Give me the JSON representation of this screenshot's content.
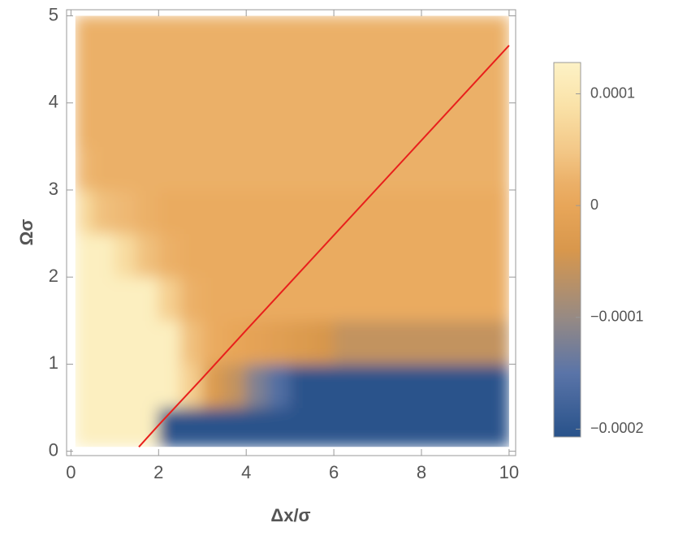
{
  "chart_data": {
    "type": "density",
    "x_label": "Δx/σ",
    "y_label": "Ωσ",
    "xlim": [
      -0.1,
      10.15
    ],
    "ylim": [
      -0.05,
      5.07
    ],
    "xticks": [
      0,
      2,
      4,
      6,
      8,
      10
    ],
    "yticks": [
      0,
      1,
      2,
      3,
      4,
      5
    ],
    "extent": {
      "x": [
        0.1,
        10
      ],
      "y": [
        0.05,
        5
      ]
    },
    "z_x": [
      0.25,
      0.75,
      1.25,
      1.75,
      2.25,
      2.75,
      3.25,
      3.75,
      4.25,
      4.75,
      5.25,
      5.75,
      6.25,
      6.75,
      7.25,
      7.75,
      8.25,
      8.75,
      9.25,
      9.75
    ],
    "z_y": [
      0.25,
      0.75,
      1.25,
      1.75,
      2.25,
      2.75,
      3.25,
      3.75,
      4.25,
      4.75
    ],
    "z": [
      [
        0.00012,
        0.00012,
        0.00012,
        0.00012,
        -0.000205,
        -0.000205,
        -0.000205,
        -0.000205,
        -0.000205,
        -0.000205,
        -0.000205,
        -0.000205,
        -0.000205,
        -0.000205,
        -0.000205,
        -0.000205,
        -0.000205,
        -0.000205,
        -0.000205,
        -0.000205
      ],
      [
        0.00012,
        0.00012,
        0.00012,
        0.00012,
        0.00012,
        6e-05,
        -3e-05,
        -6e-05,
        -0.00012,
        -0.00016,
        -0.000205,
        -0.000205,
        -0.000205,
        -0.000205,
        -0.000205,
        -0.000205,
        -0.000205,
        -0.000205,
        -0.000205,
        -0.000205
      ],
      [
        0.00012,
        0.00012,
        0.00012,
        0.00012,
        0.00012,
        4e-05,
        1e-05,
        0,
        -1e-05,
        -2e-05,
        -3e-05,
        -4e-05,
        -6e-05,
        -6e-05,
        -6e-05,
        -6e-05,
        -6e-05,
        -6e-05,
        -6e-05,
        -6e-05
      ],
      [
        0.00012,
        0.00012,
        0.00012,
        0.00012,
        6e-05,
        2e-05,
        1e-05,
        1e-05,
        1e-05,
        1e-05,
        1e-05,
        1e-05,
        1e-05,
        1e-05,
        1e-05,
        1e-05,
        1e-05,
        1e-05,
        1e-05,
        1e-05
      ],
      [
        0.00012,
        0.00012,
        8e-05,
        4e-05,
        2e-05,
        1e-05,
        1e-05,
        1e-05,
        1e-05,
        1e-05,
        1e-05,
        1e-05,
        1e-05,
        1e-05,
        1e-05,
        1e-05,
        1e-05,
        1e-05,
        1e-05,
        1e-05
      ],
      [
        8e-05,
        4e-05,
        3e-05,
        2e-05,
        1e-05,
        1e-05,
        1e-05,
        1e-05,
        1e-05,
        1e-05,
        1e-05,
        1e-05,
        1e-05,
        1e-05,
        1e-05,
        1e-05,
        1e-05,
        1e-05,
        1e-05,
        1e-05
      ],
      [
        3e-05,
        2e-05,
        2e-05,
        2e-05,
        2e-05,
        2e-05,
        2e-05,
        2e-05,
        2e-05,
        2e-05,
        2e-05,
        2e-05,
        2e-05,
        2e-05,
        2e-05,
        2e-05,
        2e-05,
        2e-05,
        2e-05,
        2e-05
      ],
      [
        2e-05,
        2e-05,
        2e-05,
        2e-05,
        2e-05,
        2e-05,
        2e-05,
        2e-05,
        2e-05,
        2e-05,
        2e-05,
        2e-05,
        2e-05,
        2e-05,
        2e-05,
        2e-05,
        2e-05,
        2e-05,
        2e-05,
        2e-05
      ],
      [
        2e-05,
        2e-05,
        2e-05,
        2e-05,
        2e-05,
        2e-05,
        2e-05,
        2e-05,
        2e-05,
        2e-05,
        2e-05,
        2e-05,
        2e-05,
        2e-05,
        2e-05,
        2e-05,
        2e-05,
        2e-05,
        2e-05,
        2e-05
      ],
      [
        2e-05,
        2e-05,
        2e-05,
        2e-05,
        2e-05,
        2e-05,
        2e-05,
        2e-05,
        2e-05,
        2e-05,
        2e-05,
        2e-05,
        2e-05,
        2e-05,
        2e-05,
        2e-05,
        2e-05,
        2e-05,
        2e-05,
        2e-05
      ]
    ],
    "line": {
      "color": "#e8201c",
      "x": [
        1.55,
        2,
        3,
        4,
        6,
        8,
        10
      ],
      "y": [
        0.05,
        0.3,
        0.84,
        1.39,
        2.48,
        3.57,
        4.66
      ]
    },
    "colorbar": {
      "lim": [
        -0.000207,
        0.000128
      ],
      "ticks": [
        0.0001,
        0,
        {
          "value": -0.0001,
          "label": "−0.0001"
        },
        {
          "value": -0.0002,
          "label": "−0.0002"
        }
      ],
      "stops": [
        [
          -0.000207,
          "#28528a"
        ],
        [
          -0.00015,
          "#5a74a8"
        ],
        [
          -0.0001,
          "#978a83"
        ],
        [
          -4e-05,
          "#d8974c"
        ],
        [
          0,
          "#e8a659"
        ],
        [
          2e-05,
          "#ebb068"
        ],
        [
          5e-05,
          "#f3c888"
        ],
        [
          9e-05,
          "#fae2a8"
        ],
        [
          0.000128,
          "#fdf2c6"
        ]
      ]
    }
  }
}
